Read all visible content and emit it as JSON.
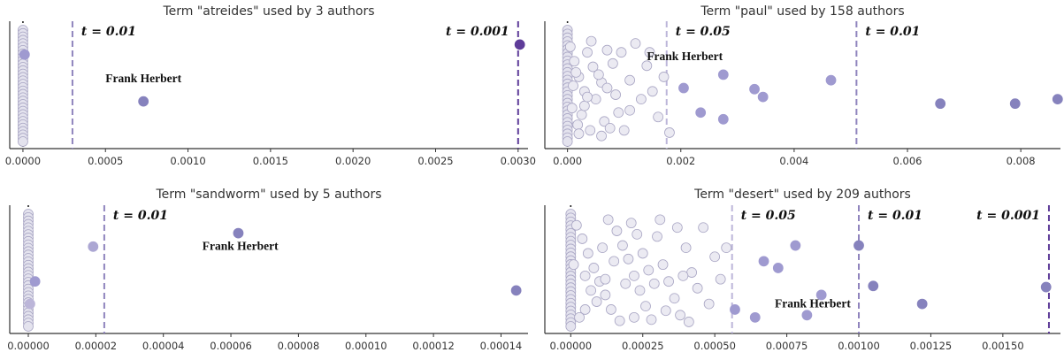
{
  "chart_data": [
    {
      "type": "scatter",
      "title": "Term \"atreides\" used by 3 authors",
      "xlim": [
        -8e-05,
        0.00306
      ],
      "ticks": [
        {
          "v": 0,
          "label": "0.0000"
        },
        {
          "v": 0.0005,
          "label": "0.0005"
        },
        {
          "v": 0.001,
          "label": "0.0010"
        },
        {
          "v": 0.0015,
          "label": "0.0015"
        },
        {
          "v": 0.002,
          "label": "0.0020"
        },
        {
          "v": 0.0025,
          "label": "0.0025"
        },
        {
          "v": 0.003,
          "label": "0.0030"
        }
      ],
      "thresholds": [
        {
          "label": "t = 0.01",
          "x": 0.0003,
          "color": "#8f84bd",
          "text_side": "right"
        },
        {
          "label": "t = 0.001",
          "x": 0.003,
          "color": "#5e3c99",
          "text_side": "left"
        }
      ],
      "zero_cluster_count": 34,
      "points": [
        {
          "x": 1e-05,
          "y": 0.22,
          "color": "#9f9ad0"
        },
        {
          "x": 0.00073,
          "y": 0.64,
          "color": "#8682bd"
        },
        {
          "x": 0.00301,
          "y": 0.13,
          "color": "#5e3c99"
        }
      ],
      "annotation": {
        "text": "Frank Herbert",
        "x": 0.00073,
        "y": 0.47
      }
    },
    {
      "type": "scatter",
      "title": "Term \"paul\" used by 158 authors",
      "xlim": [
        -0.0004,
        0.0087
      ],
      "ticks": [
        {
          "v": 0,
          "label": "0.000"
        },
        {
          "v": 0.002,
          "label": "0.002"
        },
        {
          "v": 0.004,
          "label": "0.004"
        },
        {
          "v": 0.006,
          "label": "0.006"
        },
        {
          "v": 0.008,
          "label": "0.008"
        }
      ],
      "thresholds": [
        {
          "label": "t = 0.05",
          "x": 0.00175,
          "color": "#bcb6d9",
          "text_side": "right"
        },
        {
          "label": "t = 0.01",
          "x": 0.0051,
          "color": "#8f84bd",
          "text_side": "right"
        }
      ],
      "zero_cluster_count": 30,
      "light_points": [
        [
          5e-05,
          0.15
        ],
        [
          0.00012,
          0.28
        ],
        [
          0.0002,
          0.42
        ],
        [
          0.0003,
          0.55
        ],
        [
          8e-05,
          0.7
        ],
        [
          0.00018,
          0.85
        ],
        [
          0.00035,
          0.2
        ],
        [
          0.00045,
          0.33
        ],
        [
          0.0005,
          0.62
        ],
        [
          0.00025,
          0.76
        ],
        [
          0.0006,
          0.47
        ],
        [
          0.0007,
          0.18
        ],
        [
          0.00065,
          0.82
        ],
        [
          0.0004,
          0.9
        ],
        [
          0.00015,
          0.38
        ],
        [
          0.0003,
          0.68
        ],
        [
          0.0008,
          0.3
        ],
        [
          0.00085,
          0.58
        ],
        [
          0.0009,
          0.74
        ],
        [
          0.001,
          0.9
        ],
        [
          0.0011,
          0.45
        ],
        [
          0.0012,
          0.12
        ],
        [
          0.0013,
          0.62
        ],
        [
          0.0014,
          0.32
        ],
        [
          0.0015,
          0.55
        ],
        [
          0.0016,
          0.78
        ],
        [
          0.0017,
          0.42
        ],
        [
          0.0018,
          0.92
        ],
        [
          0.00055,
          0.4
        ],
        [
          0.0002,
          0.93
        ],
        [
          0.0006,
          0.95
        ],
        [
          0.00095,
          0.2
        ],
        [
          0.0007,
          0.52
        ],
        [
          0.0001,
          0.5
        ],
        [
          0.00042,
          0.1
        ],
        [
          0.0011,
          0.72
        ],
        [
          0.00145,
          0.2
        ],
        [
          0.00035,
          0.6
        ],
        [
          0.00075,
          0.88
        ]
      ],
      "points": [
        {
          "x": 0.00205,
          "y": 0.52,
          "color": "#9f9ad0"
        },
        {
          "x": 0.00235,
          "y": 0.74,
          "color": "#9f9ad0"
        },
        {
          "x": 0.00275,
          "y": 0.4,
          "color": "#9f9ad0"
        },
        {
          "x": 0.00275,
          "y": 0.8,
          "color": "#9f9ad0"
        },
        {
          "x": 0.0033,
          "y": 0.53,
          "color": "#9f9ad0"
        },
        {
          "x": 0.00345,
          "y": 0.6,
          "color": "#9f9ad0"
        },
        {
          "x": 0.00465,
          "y": 0.45,
          "color": "#9f9ad0"
        },
        {
          "x": 0.00658,
          "y": 0.66,
          "color": "#8682bd"
        },
        {
          "x": 0.0079,
          "y": 0.66,
          "color": "#8682bd"
        },
        {
          "x": 0.00865,
          "y": 0.62,
          "color": "#8682bd"
        }
      ],
      "annotation": {
        "text": "Frank Herbert",
        "x": 0.00207,
        "y": 0.27
      }
    },
    {
      "type": "scatter",
      "title": "Term \"sandworm\" used by 5 authors",
      "xlim": [
        -5.5e-06,
        0.000148
      ],
      "ticks": [
        {
          "v": 0,
          "label": "0.00000"
        },
        {
          "v": 2e-05,
          "label": "0.00002"
        },
        {
          "v": 4e-05,
          "label": "0.00004"
        },
        {
          "v": 6e-05,
          "label": "0.00006"
        },
        {
          "v": 8e-05,
          "label": "0.00008"
        },
        {
          "v": 0.0001,
          "label": "0.00010"
        },
        {
          "v": 0.00012,
          "label": "0.00012"
        },
        {
          "v": 0.00014,
          "label": "0.00014"
        }
      ],
      "thresholds": [
        {
          "label": "t = 0.01",
          "x": 2.25e-05,
          "color": "#8f84bd",
          "text_side": "right"
        }
      ],
      "zero_cluster_count": 34,
      "points": [
        {
          "x": 5e-07,
          "y": 0.8,
          "color": "#bcb6d9"
        },
        {
          "x": 2e-06,
          "y": 0.6,
          "color": "#9f9ad0"
        },
        {
          "x": 1.92e-05,
          "y": 0.29,
          "color": "#aca7d3"
        },
        {
          "x": 6.22e-05,
          "y": 0.17,
          "color": "#8682bd"
        },
        {
          "x": 0.0001445,
          "y": 0.68,
          "color": "#8682bd"
        }
      ],
      "annotation": {
        "text": "Frank Herbert",
        "x": 6.28e-05,
        "y": 0.32
      }
    },
    {
      "type": "scatter",
      "title": "Term \"desert\" used by 209 authors",
      "xlim": [
        -9e-05,
        0.0017
      ],
      "ticks": [
        {
          "v": 0,
          "label": "0.00000"
        },
        {
          "v": 0.00025,
          "label": "0.00025"
        },
        {
          "v": 0.0005,
          "label": "0.00050"
        },
        {
          "v": 0.00075,
          "label": "0.00075"
        },
        {
          "v": 0.001,
          "label": "0.00100"
        },
        {
          "v": 0.00125,
          "label": "0.00125"
        },
        {
          "v": 0.0015,
          "label": "0.00150"
        }
      ],
      "thresholds": [
        {
          "label": "t = 0.05",
          "x": 0.00056,
          "color": "#bcb6d9",
          "text_side": "right"
        },
        {
          "label": "t = 0.01",
          "x": 0.001,
          "color": "#8f84bd",
          "text_side": "right"
        },
        {
          "label": "t = 0.001",
          "x": 0.00166,
          "color": "#5e3c99",
          "text_side": "left"
        }
      ],
      "zero_cluster_count": 30,
      "light_points": [
        [
          2e-05,
          0.1
        ],
        [
          4e-05,
          0.22
        ],
        [
          6e-05,
          0.35
        ],
        [
          8e-05,
          0.48
        ],
        [
          0.0001,
          0.6
        ],
        [
          0.00012,
          0.72
        ],
        [
          0.00014,
          0.85
        ],
        [
          3e-05,
          0.92
        ],
        [
          0.00016,
          0.15
        ],
        [
          0.00018,
          0.28
        ],
        [
          0.0002,
          0.4
        ],
        [
          0.00022,
          0.55
        ],
        [
          0.00024,
          0.68
        ],
        [
          0.00026,
          0.82
        ],
        [
          0.00028,
          0.94
        ],
        [
          0.0003,
          0.2
        ],
        [
          0.00032,
          0.45
        ],
        [
          0.00034,
          0.6
        ],
        [
          0.00036,
          0.75
        ],
        [
          0.00038,
          0.9
        ],
        [
          0.0004,
          0.3
        ],
        [
          0.00042,
          0.52
        ],
        [
          0.00044,
          0.66
        ],
        [
          0.00046,
          0.12
        ],
        [
          0.00048,
          0.8
        ],
        [
          0.0005,
          0.38
        ],
        [
          0.00052,
          0.58
        ],
        [
          0.00054,
          0.3
        ],
        [
          5e-05,
          0.55
        ],
        [
          9e-05,
          0.78
        ],
        [
          0.00013,
          0.05
        ],
        [
          0.00015,
          0.42
        ],
        [
          0.00019,
          0.62
        ],
        [
          0.00021,
          0.08
        ],
        [
          0.00025,
          0.35
        ],
        [
          0.00027,
          0.5
        ],
        [
          0.00011,
          0.3
        ],
        [
          7e-05,
          0.68
        ],
        [
          0.00017,
          0.95
        ],
        [
          0.00023,
          0.18
        ],
        [
          0.00033,
          0.86
        ],
        [
          0.00029,
          0.62
        ],
        [
          0.00037,
          0.12
        ],
        [
          0.00041,
          0.96
        ],
        [
          1e-05,
          0.45
        ],
        [
          5e-05,
          0.85
        ],
        [
          0.00012,
          0.58
        ],
        [
          0.00022,
          0.92
        ],
        [
          0.00031,
          0.05
        ],
        [
          0.00039,
          0.55
        ]
      ],
      "points": [
        {
          "x": 0.00057,
          "y": 0.85,
          "color": "#9f9ad0"
        },
        {
          "x": 0.00064,
          "y": 0.92,
          "color": "#9f9ad0"
        },
        {
          "x": 0.00067,
          "y": 0.42,
          "color": "#9f9ad0"
        },
        {
          "x": 0.00072,
          "y": 0.48,
          "color": "#9f9ad0"
        },
        {
          "x": 0.00078,
          "y": 0.28,
          "color": "#9f9ad0"
        },
        {
          "x": 0.00082,
          "y": 0.9,
          "color": "#9f9ad0"
        },
        {
          "x": 0.00087,
          "y": 0.72,
          "color": "#9f9ad0"
        },
        {
          "x": 0.001,
          "y": 0.28,
          "color": "#8682bd"
        },
        {
          "x": 0.00105,
          "y": 0.64,
          "color": "#8682bd"
        },
        {
          "x": 0.00122,
          "y": 0.8,
          "color": "#8682bd"
        },
        {
          "x": 0.00165,
          "y": 0.65,
          "color": "#8682bd"
        }
      ],
      "annotation": {
        "text": "Frank Herbert",
        "x": 0.00084,
        "y": 0.83
      }
    }
  ]
}
